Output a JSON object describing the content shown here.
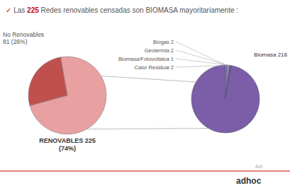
{
  "chart_data": [
    {
      "type": "pie",
      "title": "✓ Las 225 Redes renovables censadas son BIOMASA mayoritariamente :",
      "values": [
        225,
        81
      ],
      "value_labels": [
        "RENOVABLES 225\n(74%)",
        "No Renovables\n81 (26%)"
      ],
      "colors": [
        "#e8a0a0",
        "#c0504d"
      ],
      "data_labels": true
    },
    {
      "type": "pie",
      "values": [
        218,
        2,
        2,
        1,
        2
      ],
      "value_labels": [
        "Biomasa 218",
        "Biogas 2",
        "Geotermia 2",
        "Biomasa/Fotovoltaica 1",
        "Calor Residual 2"
      ],
      "colors": [
        "#7b5ea7",
        "#8b6eb7",
        "#9b7ec7",
        "#ffffff",
        "#6b4e97"
      ],
      "data_labels": true,
      "annotations": [
        "Act",
        "adhoc"
      ]
    }
  ]
}
